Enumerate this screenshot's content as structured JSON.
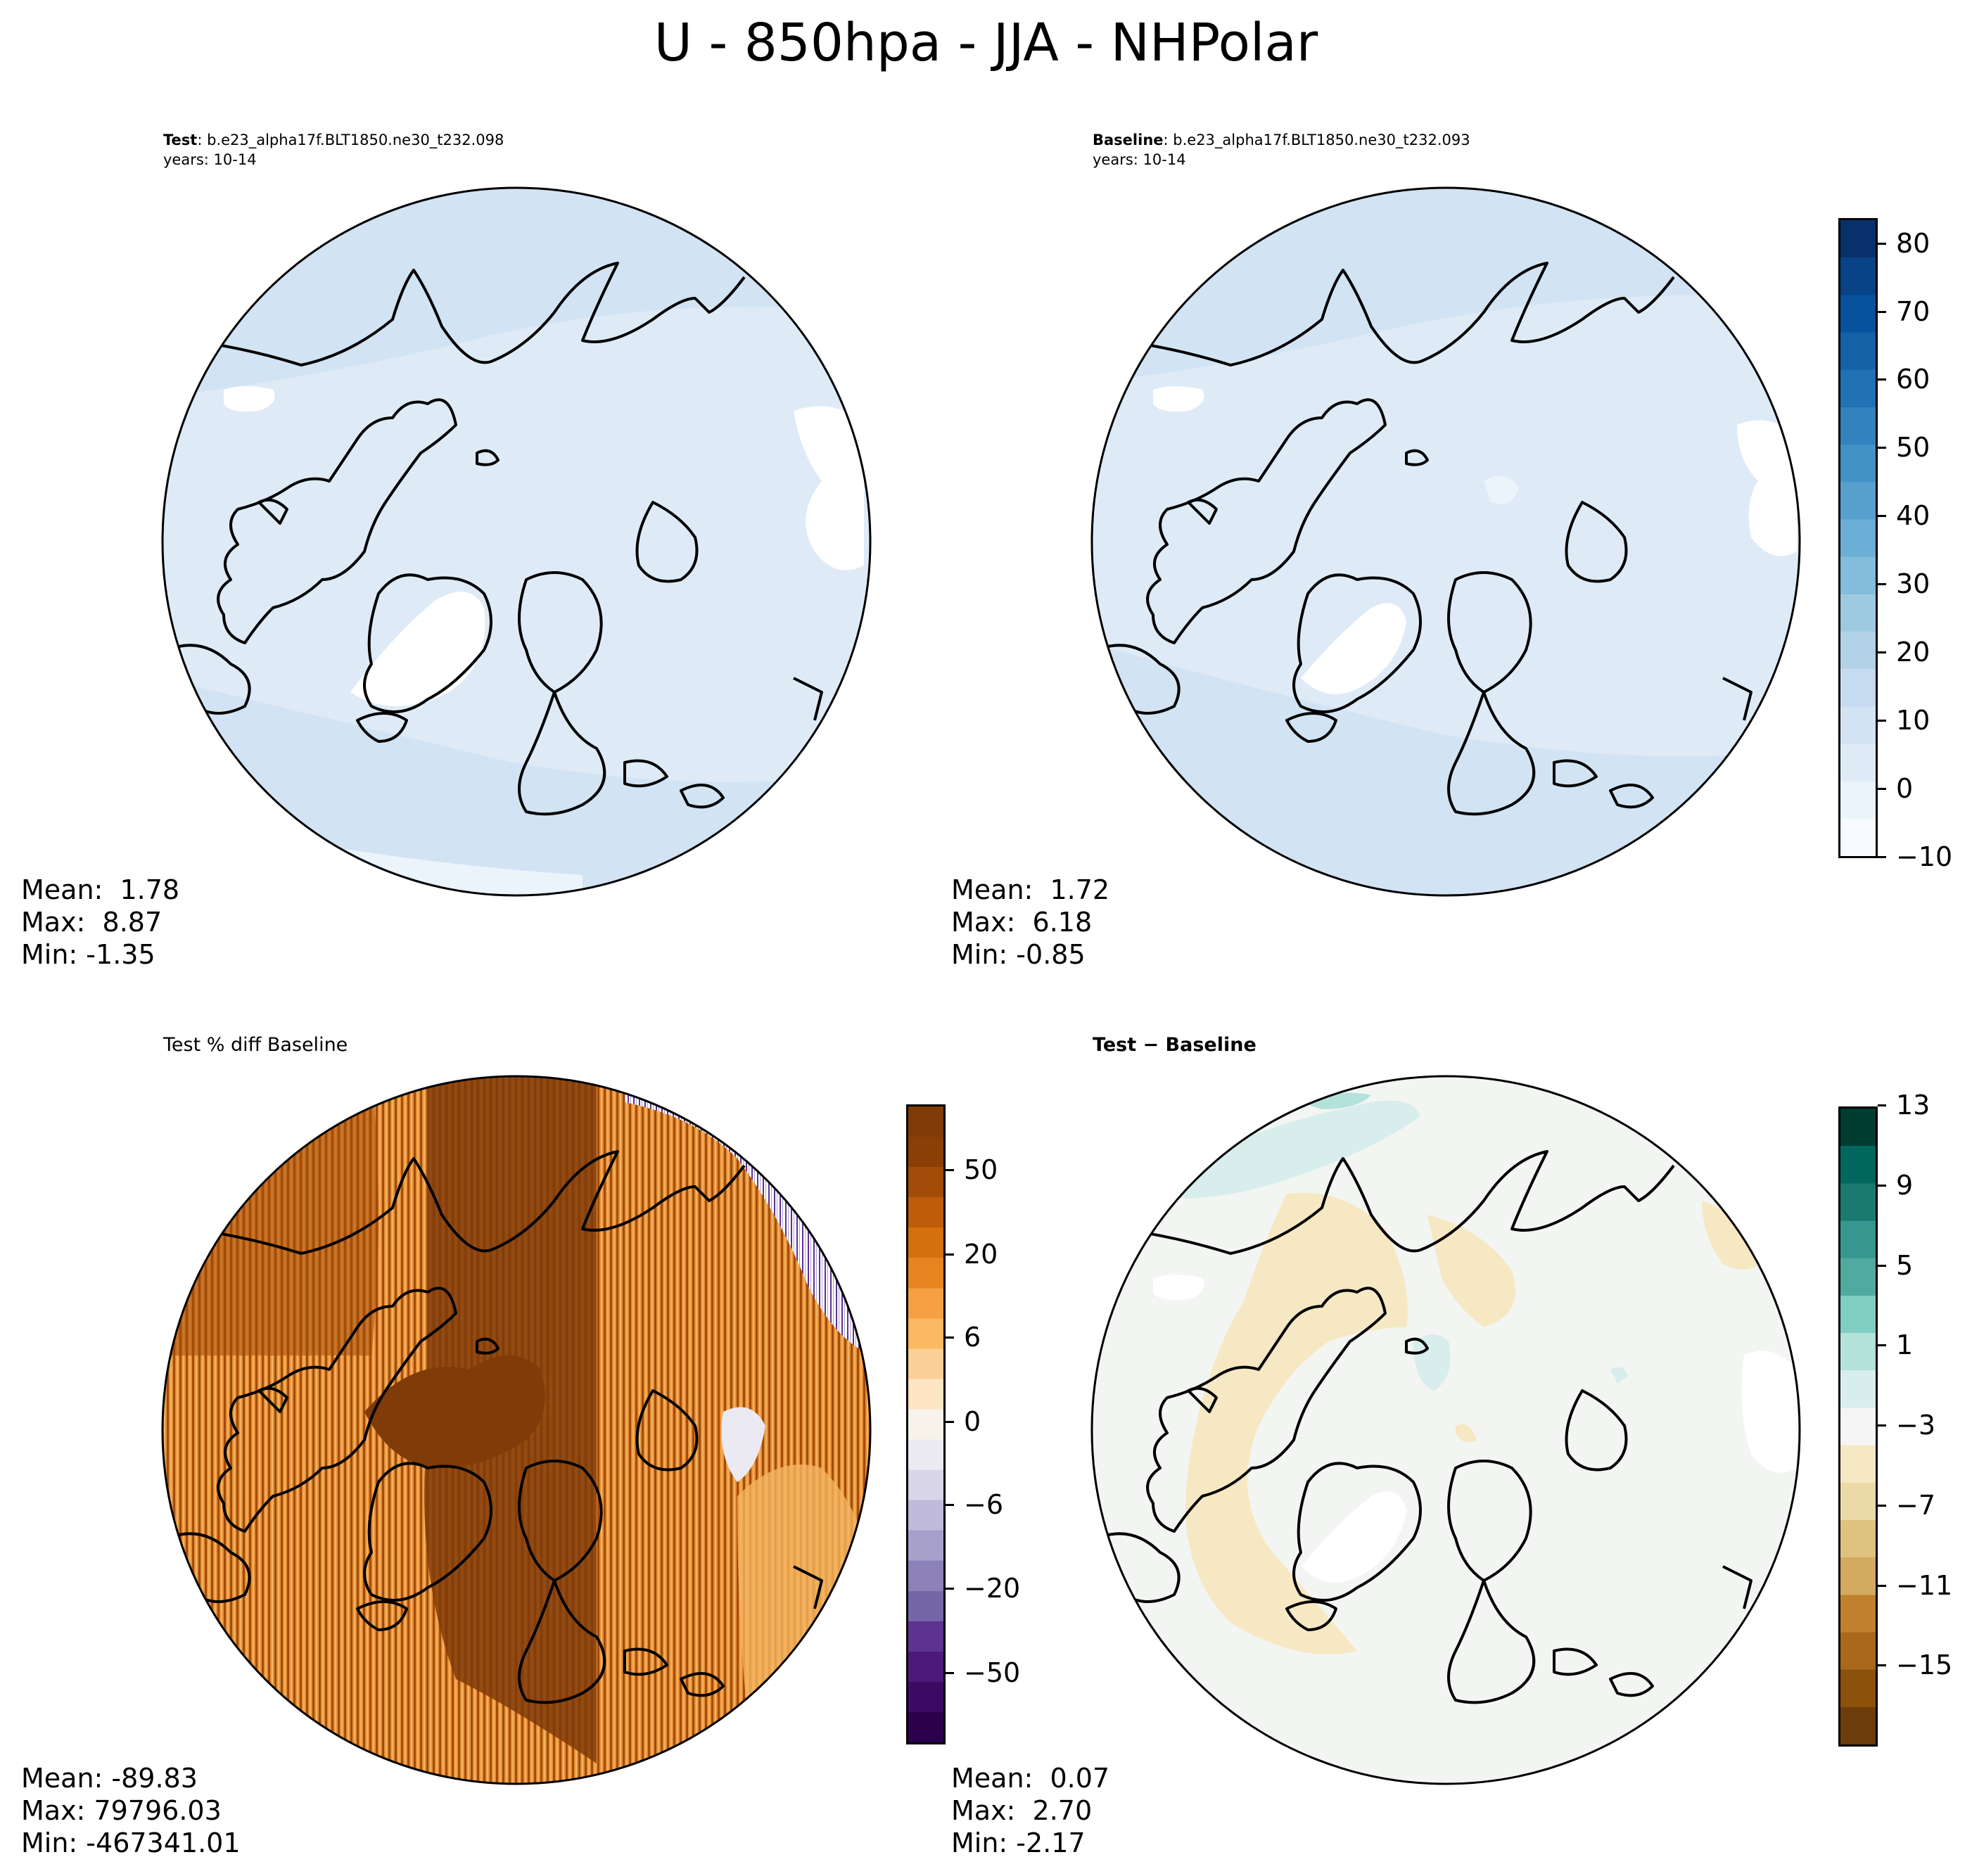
{
  "title": "U - 850hpa - JJA - NHPolar",
  "panels": {
    "test": {
      "label_bold": "Test",
      "label_rest": ": b.e23_alpha17f.BLT1850.ne30_t232.098",
      "years": "years: 10-14",
      "mean": "Mean:  1.78",
      "max": "Max:  8.87",
      "min": "Min: -1.35"
    },
    "baseline": {
      "label_bold": "Baseline",
      "label_rest": ": b.e23_alpha17f.BLT1850.ne30_t232.093",
      "years": "years: 10-14",
      "mean": "Mean:  1.72",
      "max": "Max:  6.18",
      "min": "Min: -0.85"
    },
    "pctdiff": {
      "label": "Test % diff Baseline",
      "mean": "Mean: -89.83",
      "max": "Max: 79796.03",
      "min": "Min: -467341.01"
    },
    "diff": {
      "label": "Test − Baseline",
      "mean": "Mean:  0.07",
      "max": "Max:  2.70",
      "min": "Min: -2.17"
    }
  },
  "colorbars": {
    "blues": {
      "ticks": [
        "80",
        "70",
        "60",
        "50",
        "40",
        "30",
        "20",
        "10",
        "0",
        "−10"
      ],
      "colors": [
        "#f7fbff",
        "#ebf3fb",
        "#deebf7",
        "#d2e3f3",
        "#c6dbef",
        "#b2d2e8",
        "#9ecae1",
        "#84bcdb",
        "#6baed6",
        "#57a0ce",
        "#4292c6",
        "#3282be",
        "#2171b5",
        "#1461a8",
        "#08519c",
        "#084287",
        "#08306b"
      ]
    },
    "puor": {
      "ticks": [
        "50",
        "20",
        "6",
        "0",
        "−6",
        "−20",
        "−50"
      ],
      "colors": [
        "#2d004b",
        "#3b0a63",
        "#4b1a7a",
        "#5e3290",
        "#7566a5",
        "#8c82b9",
        "#a7a0cb",
        "#c0bbda",
        "#d8d5e8",
        "#ebeaf3",
        "#f7f2ea",
        "#fde4c2",
        "#fdcf98",
        "#fdb863",
        "#f4a043",
        "#e6851f",
        "#d4700e",
        "#bf5c0a",
        "#a34b08",
        "#8a3f07",
        "#7f3b08"
      ]
    },
    "brbg": {
      "ticks": [
        "13",
        "9",
        "5",
        "1",
        "−3",
        "−7",
        "−11",
        "−15"
      ],
      "colors": [
        "#6c3c0b",
        "#8c510a",
        "#a9691c",
        "#bf812d",
        "#d4aa60",
        "#dfc27d",
        "#ecd9a8",
        "#f6e8c3",
        "#f5f5f5",
        "#d8eeec",
        "#b2e2da",
        "#80cdc1",
        "#50aa9f",
        "#35978f",
        "#1b7a70",
        "#01665e",
        "#003c30"
      ]
    }
  }
}
